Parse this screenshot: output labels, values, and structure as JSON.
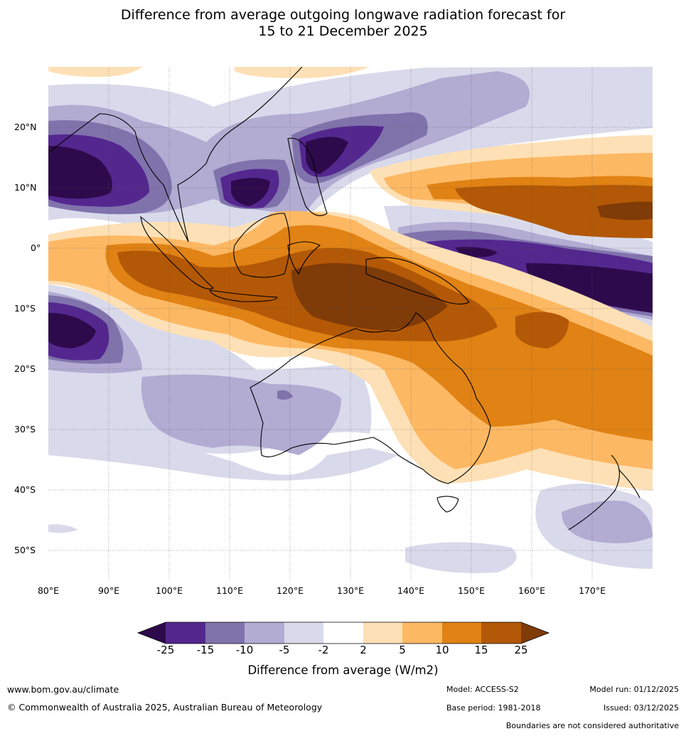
{
  "title": {
    "line1": "Difference from average outgoing longwave radiation forecast for",
    "line2": "15 to 21 December 2025"
  },
  "axes": {
    "lat_labels": [
      "20°N",
      "10°N",
      "0°",
      "10°S",
      "20°S",
      "30°S",
      "40°S",
      "50°S"
    ],
    "lon_labels": [
      "80°E",
      "90°E",
      "100°E",
      "110°E",
      "120°E",
      "130°E",
      "140°E",
      "150°E",
      "160°E",
      "170°E"
    ]
  },
  "colorbar": {
    "ticks": [
      "-25",
      "-15",
      "-10",
      "-5",
      "-2",
      "2",
      "5",
      "10",
      "15",
      "25"
    ],
    "colors": {
      "lt25": "#2d0a4b",
      "c1": "#54278f",
      "c2": "#8073ac",
      "c3": "#b2abd2",
      "c4": "#d8daeb",
      "c5": "#ffffff",
      "c6": "#fee0b6",
      "c7": "#fdb863",
      "c8": "#e08214",
      "c9": "#b35806",
      "gt25": "#7f3b08"
    },
    "label": "Difference from average (W/m2)"
  },
  "footer": {
    "website": "www.bom.gov.au/climate",
    "copyright": "© Commonwealth of Australia 2025, Australian Bureau of Meteorology",
    "model": "Model: ACCESS-S2",
    "base_period": "Base period: 1981-2018",
    "model_run": "Model run: 01/12/2025",
    "issued": "Issued: 03/12/2025",
    "disclaimer": "Boundaries are not considered authoritative"
  }
}
